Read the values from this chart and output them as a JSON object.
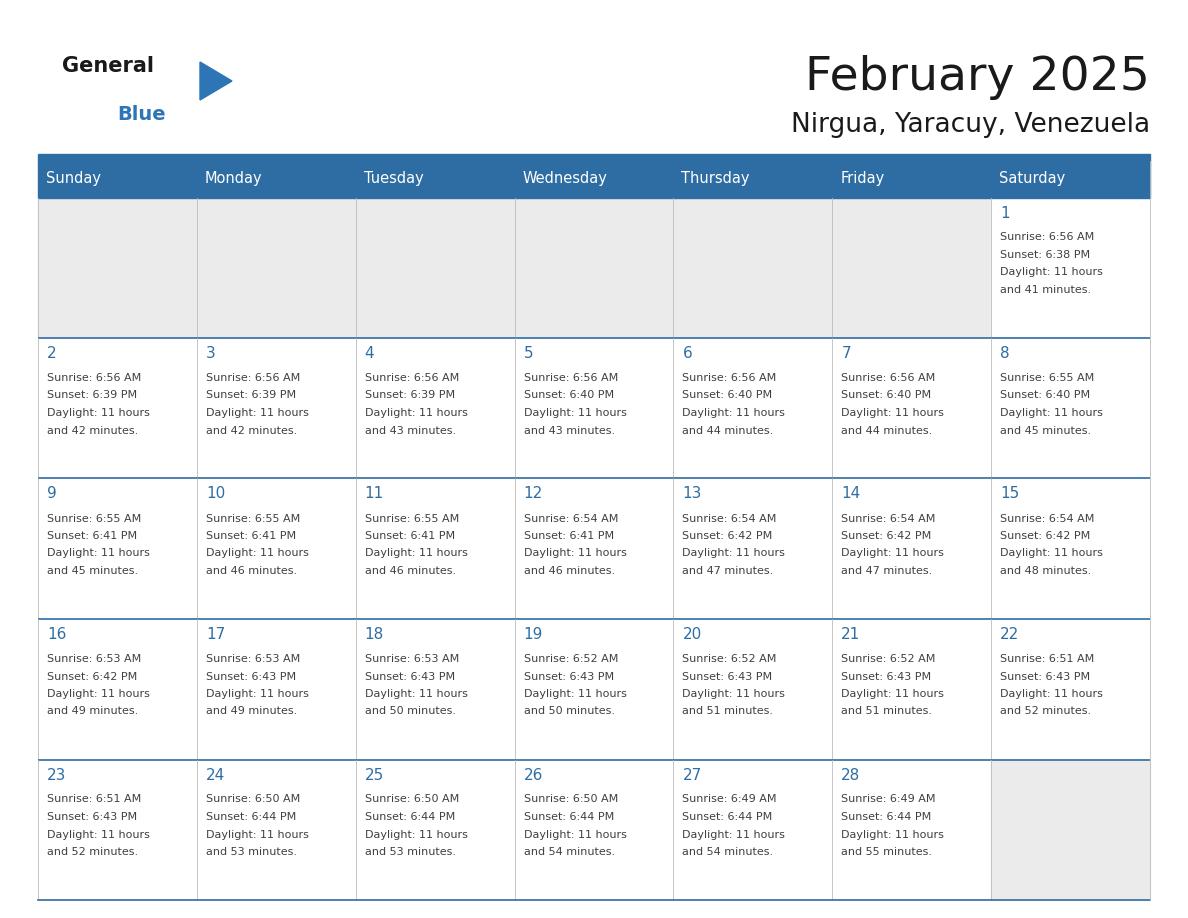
{
  "title": "February 2025",
  "subtitle": "Nirgua, Yaracuy, Venezuela",
  "days_of_week": [
    "Sunday",
    "Monday",
    "Tuesday",
    "Wednesday",
    "Thursday",
    "Friday",
    "Saturday"
  ],
  "header_bg_color": "#2E6DA4",
  "header_text_color": "#FFFFFF",
  "empty_cell_bg": "#EBEBEB",
  "filled_cell_bg": "#FFFFFF",
  "border_color": "#2E6DA4",
  "day_number_color": "#2E6DA4",
  "text_color": "#404040",
  "logo_general_color": "#1A1A1A",
  "logo_blue_color": "#2E75B6",
  "weeks": [
    [
      {
        "day": null,
        "sunrise": null,
        "sunset": null,
        "daylight_line1": null,
        "daylight_line2": null
      },
      {
        "day": null,
        "sunrise": null,
        "sunset": null,
        "daylight_line1": null,
        "daylight_line2": null
      },
      {
        "day": null,
        "sunrise": null,
        "sunset": null,
        "daylight_line1": null,
        "daylight_line2": null
      },
      {
        "day": null,
        "sunrise": null,
        "sunset": null,
        "daylight_line1": null,
        "daylight_line2": null
      },
      {
        "day": null,
        "sunrise": null,
        "sunset": null,
        "daylight_line1": null,
        "daylight_line2": null
      },
      {
        "day": null,
        "sunrise": null,
        "sunset": null,
        "daylight_line1": null,
        "daylight_line2": null
      },
      {
        "day": 1,
        "sunrise": "6:56 AM",
        "sunset": "6:38 PM",
        "daylight_line1": "Daylight: 11 hours",
        "daylight_line2": "and 41 minutes."
      }
    ],
    [
      {
        "day": 2,
        "sunrise": "6:56 AM",
        "sunset": "6:39 PM",
        "daylight_line1": "Daylight: 11 hours",
        "daylight_line2": "and 42 minutes."
      },
      {
        "day": 3,
        "sunrise": "6:56 AM",
        "sunset": "6:39 PM",
        "daylight_line1": "Daylight: 11 hours",
        "daylight_line2": "and 42 minutes."
      },
      {
        "day": 4,
        "sunrise": "6:56 AM",
        "sunset": "6:39 PM",
        "daylight_line1": "Daylight: 11 hours",
        "daylight_line2": "and 43 minutes."
      },
      {
        "day": 5,
        "sunrise": "6:56 AM",
        "sunset": "6:40 PM",
        "daylight_line1": "Daylight: 11 hours",
        "daylight_line2": "and 43 minutes."
      },
      {
        "day": 6,
        "sunrise": "6:56 AM",
        "sunset": "6:40 PM",
        "daylight_line1": "Daylight: 11 hours",
        "daylight_line2": "and 44 minutes."
      },
      {
        "day": 7,
        "sunrise": "6:56 AM",
        "sunset": "6:40 PM",
        "daylight_line1": "Daylight: 11 hours",
        "daylight_line2": "and 44 minutes."
      },
      {
        "day": 8,
        "sunrise": "6:55 AM",
        "sunset": "6:40 PM",
        "daylight_line1": "Daylight: 11 hours",
        "daylight_line2": "and 45 minutes."
      }
    ],
    [
      {
        "day": 9,
        "sunrise": "6:55 AM",
        "sunset": "6:41 PM",
        "daylight_line1": "Daylight: 11 hours",
        "daylight_line2": "and 45 minutes."
      },
      {
        "day": 10,
        "sunrise": "6:55 AM",
        "sunset": "6:41 PM",
        "daylight_line1": "Daylight: 11 hours",
        "daylight_line2": "and 46 minutes."
      },
      {
        "day": 11,
        "sunrise": "6:55 AM",
        "sunset": "6:41 PM",
        "daylight_line1": "Daylight: 11 hours",
        "daylight_line2": "and 46 minutes."
      },
      {
        "day": 12,
        "sunrise": "6:54 AM",
        "sunset": "6:41 PM",
        "daylight_line1": "Daylight: 11 hours",
        "daylight_line2": "and 46 minutes."
      },
      {
        "day": 13,
        "sunrise": "6:54 AM",
        "sunset": "6:42 PM",
        "daylight_line1": "Daylight: 11 hours",
        "daylight_line2": "and 47 minutes."
      },
      {
        "day": 14,
        "sunrise": "6:54 AM",
        "sunset": "6:42 PM",
        "daylight_line1": "Daylight: 11 hours",
        "daylight_line2": "and 47 minutes."
      },
      {
        "day": 15,
        "sunrise": "6:54 AM",
        "sunset": "6:42 PM",
        "daylight_line1": "Daylight: 11 hours",
        "daylight_line2": "and 48 minutes."
      }
    ],
    [
      {
        "day": 16,
        "sunrise": "6:53 AM",
        "sunset": "6:42 PM",
        "daylight_line1": "Daylight: 11 hours",
        "daylight_line2": "and 49 minutes."
      },
      {
        "day": 17,
        "sunrise": "6:53 AM",
        "sunset": "6:43 PM",
        "daylight_line1": "Daylight: 11 hours",
        "daylight_line2": "and 49 minutes."
      },
      {
        "day": 18,
        "sunrise": "6:53 AM",
        "sunset": "6:43 PM",
        "daylight_line1": "Daylight: 11 hours",
        "daylight_line2": "and 50 minutes."
      },
      {
        "day": 19,
        "sunrise": "6:52 AM",
        "sunset": "6:43 PM",
        "daylight_line1": "Daylight: 11 hours",
        "daylight_line2": "and 50 minutes."
      },
      {
        "day": 20,
        "sunrise": "6:52 AM",
        "sunset": "6:43 PM",
        "daylight_line1": "Daylight: 11 hours",
        "daylight_line2": "and 51 minutes."
      },
      {
        "day": 21,
        "sunrise": "6:52 AM",
        "sunset": "6:43 PM",
        "daylight_line1": "Daylight: 11 hours",
        "daylight_line2": "and 51 minutes."
      },
      {
        "day": 22,
        "sunrise": "6:51 AM",
        "sunset": "6:43 PM",
        "daylight_line1": "Daylight: 11 hours",
        "daylight_line2": "and 52 minutes."
      }
    ],
    [
      {
        "day": 23,
        "sunrise": "6:51 AM",
        "sunset": "6:43 PM",
        "daylight_line1": "Daylight: 11 hours",
        "daylight_line2": "and 52 minutes."
      },
      {
        "day": 24,
        "sunrise": "6:50 AM",
        "sunset": "6:44 PM",
        "daylight_line1": "Daylight: 11 hours",
        "daylight_line2": "and 53 minutes."
      },
      {
        "day": 25,
        "sunrise": "6:50 AM",
        "sunset": "6:44 PM",
        "daylight_line1": "Daylight: 11 hours",
        "daylight_line2": "and 53 minutes."
      },
      {
        "day": 26,
        "sunrise": "6:50 AM",
        "sunset": "6:44 PM",
        "daylight_line1": "Daylight: 11 hours",
        "daylight_line2": "and 54 minutes."
      },
      {
        "day": 27,
        "sunrise": "6:49 AM",
        "sunset": "6:44 PM",
        "daylight_line1": "Daylight: 11 hours",
        "daylight_line2": "and 54 minutes."
      },
      {
        "day": 28,
        "sunrise": "6:49 AM",
        "sunset": "6:44 PM",
        "daylight_line1": "Daylight: 11 hours",
        "daylight_line2": "and 55 minutes."
      },
      {
        "day": null,
        "sunrise": null,
        "sunset": null,
        "daylight_line1": null,
        "daylight_line2": null
      }
    ]
  ]
}
